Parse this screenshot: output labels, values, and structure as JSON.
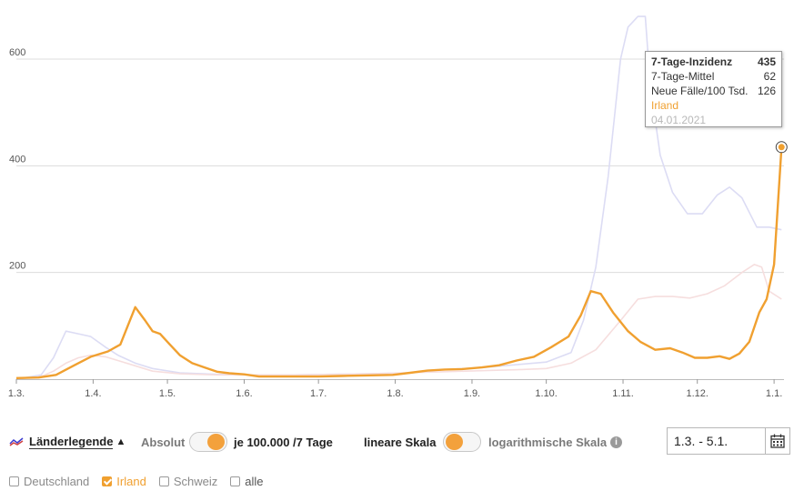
{
  "chart_data": {
    "type": "line",
    "title": "",
    "xlabel": "",
    "ylabel": "",
    "x_tick_labels": [
      "1.3.",
      "1.4.",
      "1.5.",
      "1.6.",
      "1.7.",
      "1.8.",
      "1.9.",
      "1.10.",
      "1.11.",
      "1.12.",
      "1.1."
    ],
    "y_ticks": [
      200,
      400,
      600
    ],
    "ylim": [
      0,
      690
    ],
    "x_domain": [
      "2020-03-01",
      "2021-01-05"
    ],
    "grid": "horizontal",
    "series": [
      {
        "name": "Irland",
        "color": "#f0a030",
        "highlighted": true,
        "points": [
          [
            "2020-03-01",
            2
          ],
          [
            "2020-03-10",
            3
          ],
          [
            "2020-03-17",
            8
          ],
          [
            "2020-03-24",
            25
          ],
          [
            "2020-03-31",
            42
          ],
          [
            "2020-04-07",
            52
          ],
          [
            "2020-04-12",
            65
          ],
          [
            "2020-04-15",
            100
          ],
          [
            "2020-04-18",
            135
          ],
          [
            "2020-04-22",
            110
          ],
          [
            "2020-04-25",
            90
          ],
          [
            "2020-04-28",
            85
          ],
          [
            "2020-05-02",
            65
          ],
          [
            "2020-05-06",
            45
          ],
          [
            "2020-05-11",
            30
          ],
          [
            "2020-05-16",
            22
          ],
          [
            "2020-05-21",
            14
          ],
          [
            "2020-05-26",
            11
          ],
          [
            "2020-06-01",
            9
          ],
          [
            "2020-06-07",
            5
          ],
          [
            "2020-06-15",
            5
          ],
          [
            "2020-06-25",
            5
          ],
          [
            "2020-07-01",
            5
          ],
          [
            "2020-07-10",
            6
          ],
          [
            "2020-07-20",
            7
          ],
          [
            "2020-07-31",
            8
          ],
          [
            "2020-08-07",
            12
          ],
          [
            "2020-08-14",
            16
          ],
          [
            "2020-08-21",
            18
          ],
          [
            "2020-08-28",
            19
          ],
          [
            "2020-09-05",
            22
          ],
          [
            "2020-09-12",
            26
          ],
          [
            "2020-09-19",
            35
          ],
          [
            "2020-09-26",
            42
          ],
          [
            "2020-10-03",
            60
          ],
          [
            "2020-10-10",
            80
          ],
          [
            "2020-10-15",
            120
          ],
          [
            "2020-10-19",
            165
          ],
          [
            "2020-10-23",
            160
          ],
          [
            "2020-10-28",
            125
          ],
          [
            "2020-11-03",
            90
          ],
          [
            "2020-11-08",
            70
          ],
          [
            "2020-11-14",
            55
          ],
          [
            "2020-11-20",
            58
          ],
          [
            "2020-11-25",
            50
          ],
          [
            "2020-11-30",
            40
          ],
          [
            "2020-12-05",
            40
          ],
          [
            "2020-12-10",
            43
          ],
          [
            "2020-12-14",
            38
          ],
          [
            "2020-12-18",
            48
          ],
          [
            "2020-12-22",
            70
          ],
          [
            "2020-12-26",
            125
          ],
          [
            "2020-12-29",
            150
          ],
          [
            "2021-01-01",
            215
          ],
          [
            "2021-01-04",
            435
          ]
        ]
      },
      {
        "name": "",
        "color": "#dcdcf4",
        "highlighted": false,
        "points": [
          [
            "2020-03-01",
            0
          ],
          [
            "2020-03-11",
            8
          ],
          [
            "2020-03-16",
            40
          ],
          [
            "2020-03-21",
            90
          ],
          [
            "2020-03-26",
            85
          ],
          [
            "2020-03-31",
            80
          ],
          [
            "2020-04-06",
            60
          ],
          [
            "2020-04-11",
            45
          ],
          [
            "2020-04-18",
            30
          ],
          [
            "2020-04-25",
            20
          ],
          [
            "2020-05-06",
            12
          ],
          [
            "2020-05-21",
            9
          ],
          [
            "2020-06-06",
            8
          ],
          [
            "2020-06-21",
            8
          ],
          [
            "2020-07-06",
            9
          ],
          [
            "2020-07-21",
            10
          ],
          [
            "2020-08-06",
            12
          ],
          [
            "2020-08-21",
            18
          ],
          [
            "2020-09-06",
            22
          ],
          [
            "2020-09-21",
            28
          ],
          [
            "2020-10-01",
            32
          ],
          [
            "2020-10-11",
            50
          ],
          [
            "2020-10-16",
            110
          ],
          [
            "2020-10-21",
            210
          ],
          [
            "2020-10-26",
            380
          ],
          [
            "2020-10-31",
            600
          ],
          [
            "2020-11-03",
            660
          ],
          [
            "2020-11-07",
            680
          ],
          [
            "2020-11-10",
            680
          ],
          [
            "2020-11-12",
            550
          ],
          [
            "2020-11-16",
            420
          ],
          [
            "2020-11-21",
            350
          ],
          [
            "2020-11-27",
            310
          ],
          [
            "2020-12-03",
            310
          ],
          [
            "2020-12-09",
            345
          ],
          [
            "2020-12-14",
            360
          ],
          [
            "2020-12-19",
            340
          ],
          [
            "2020-12-25",
            285
          ],
          [
            "2020-12-30",
            285
          ],
          [
            "2021-01-04",
            280
          ]
        ]
      },
      {
        "name": "",
        "color": "#f6dede",
        "highlighted": false,
        "points": [
          [
            "2020-03-01",
            0
          ],
          [
            "2020-03-11",
            5
          ],
          [
            "2020-03-16",
            15
          ],
          [
            "2020-03-21",
            30
          ],
          [
            "2020-03-26",
            40
          ],
          [
            "2020-03-31",
            45
          ],
          [
            "2020-04-06",
            42
          ],
          [
            "2020-04-11",
            35
          ],
          [
            "2020-04-18",
            25
          ],
          [
            "2020-04-25",
            15
          ],
          [
            "2020-05-06",
            10
          ],
          [
            "2020-05-21",
            8
          ],
          [
            "2020-06-06",
            8
          ],
          [
            "2020-06-21",
            8
          ],
          [
            "2020-07-06",
            9
          ],
          [
            "2020-07-21",
            10
          ],
          [
            "2020-08-06",
            12
          ],
          [
            "2020-08-21",
            14
          ],
          [
            "2020-09-06",
            16
          ],
          [
            "2020-09-21",
            18
          ],
          [
            "2020-10-01",
            20
          ],
          [
            "2020-10-11",
            30
          ],
          [
            "2020-10-21",
            55
          ],
          [
            "2020-10-31",
            110
          ],
          [
            "2020-11-07",
            150
          ],
          [
            "2020-11-14",
            155
          ],
          [
            "2020-11-21",
            155
          ],
          [
            "2020-11-28",
            152
          ],
          [
            "2020-12-05",
            160
          ],
          [
            "2020-12-12",
            175
          ],
          [
            "2020-12-19",
            200
          ],
          [
            "2020-12-24",
            215
          ],
          [
            "2020-12-27",
            210
          ],
          [
            "2020-12-30",
            165
          ],
          [
            "2021-01-04",
            150
          ]
        ]
      }
    ],
    "hover_point": {
      "series": "Irland",
      "date": "2021-01-04",
      "value": 435
    }
  },
  "tooltip": {
    "title": "7-Tage-Inzidenz",
    "title_value": "435",
    "row1_label": "7-Tage-Mittel",
    "row1_value": "62",
    "row2_label": "Neue Fälle/100 Tsd.",
    "row2_value": "126",
    "country": "Irland",
    "date": "04.01.2021"
  },
  "controls": {
    "legend_label": "Länderlegende",
    "legend_arrow": "▲",
    "absolut_label": "Absolut",
    "per100k_label": "je 100.000 /7 Tage",
    "linear_label": "lineare Skala",
    "log_label": "logarithmische Skala",
    "info_glyph": "i",
    "date_range": "1.3. - 5.1."
  },
  "countries": [
    {
      "label": "Deutschland",
      "checked": false
    },
    {
      "label": "Irland",
      "checked": true
    },
    {
      "label": "Schweiz",
      "checked": false
    },
    {
      "label": "alle",
      "checked": false
    }
  ]
}
